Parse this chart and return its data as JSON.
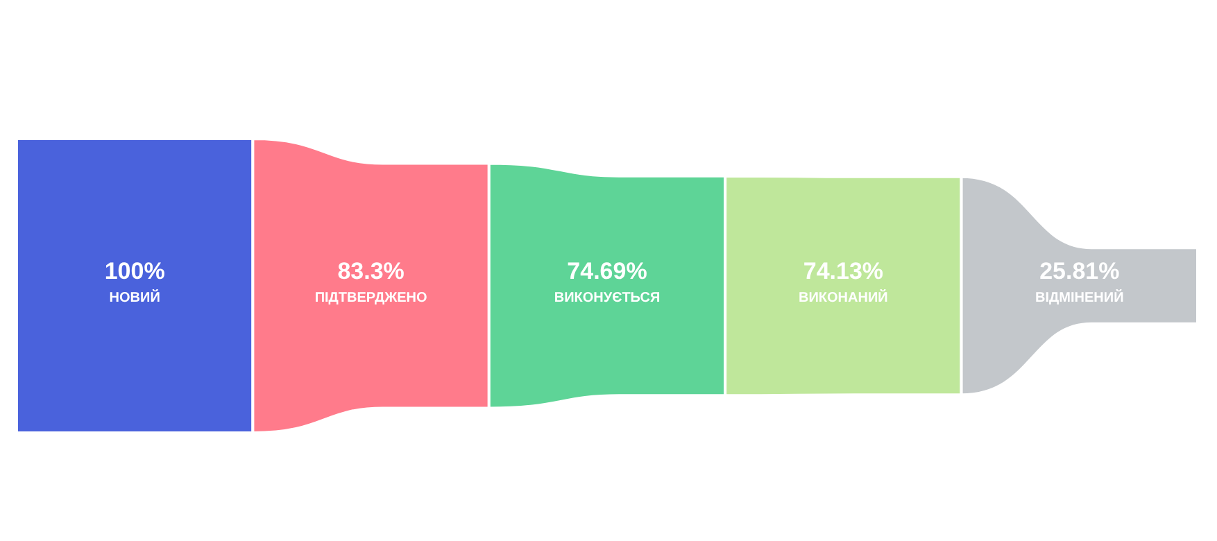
{
  "chart_data": {
    "type": "other",
    "categories": [
      "НОВИЙ",
      "ПІДТВЕРДЖЕНО",
      "ВИКОНУЄТЬСЯ",
      "ВИКОНАНИЙ",
      "ВІДМІНЕНИЙ"
    ],
    "values": [
      100,
      83.3,
      74.69,
      74.13,
      25.81
    ],
    "value_labels": [
      "100%",
      "83.3%",
      "74.69%",
      "74.13%",
      "25.81%"
    ],
    "colors": [
      "#4a62dc",
      "#ff7b8b",
      "#5ed497",
      "#bfe79b",
      "#c3c7cb"
    ]
  }
}
